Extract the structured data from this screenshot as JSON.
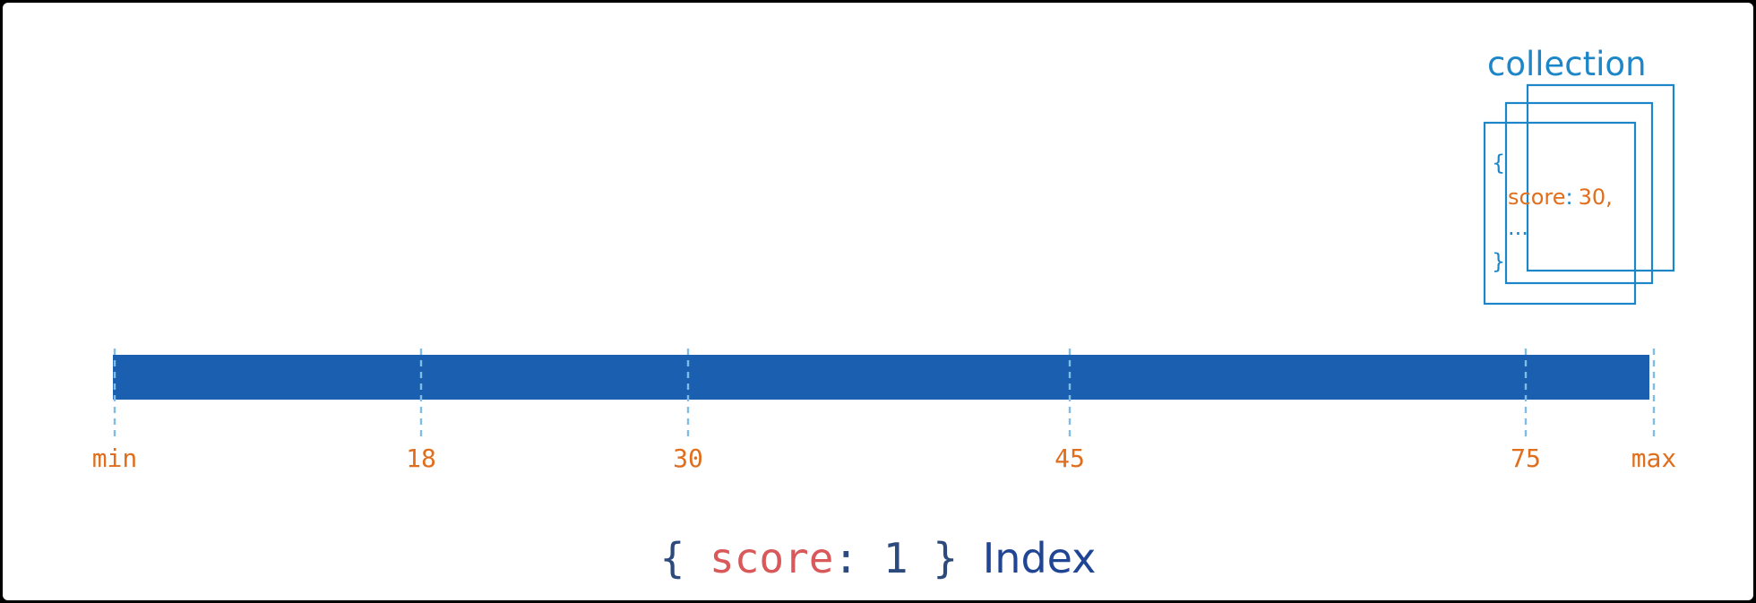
{
  "colors": {
    "bar": "#1a5fb0",
    "tick_line": "#7fbde6",
    "tick_text": "#e06e1c",
    "collection_blue": "#1d86c8",
    "score_key": "#d9585a",
    "index_word": "#1f4594",
    "brace_dark": "#2d4a7c"
  },
  "index_range": {
    "min_label": "min",
    "max_label": "max",
    "ticks": [
      {
        "label": "min",
        "value": null
      },
      {
        "label": "18",
        "value": 18
      },
      {
        "label": "30",
        "value": 30
      },
      {
        "label": "45",
        "value": 45
      },
      {
        "label": "75",
        "value": 75
      },
      {
        "label": "max",
        "value": null
      }
    ]
  },
  "collection": {
    "title": "collection",
    "doc_open": "{",
    "field_key": "score",
    "field_sep": ":",
    "field_value": "30,",
    "ellipsis": "...",
    "doc_close": "}"
  },
  "caption": {
    "open": "{",
    "key": "score",
    "colon": ":",
    "value": "1",
    "close": "}",
    "index_word": "Index"
  }
}
